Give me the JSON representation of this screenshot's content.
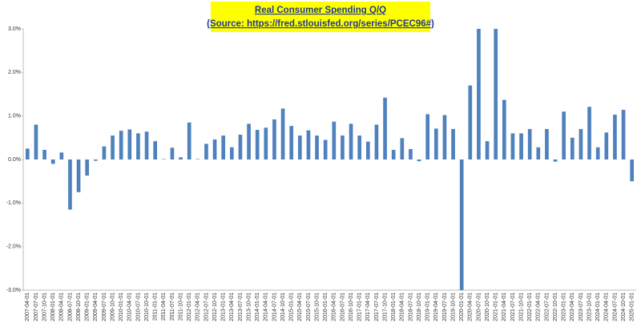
{
  "chart_data": {
    "type": "bar",
    "title": [
      "Real Consumer Spending Q/Q",
      "(Source: https://fred.stlouisfed.org/series/PCEC96#)"
    ],
    "categories": [
      "2007-04-01",
      "2007-07-01",
      "2007-10-01",
      "2008-01-01",
      "2008-04-01",
      "2008-07-01",
      "2008-10-01",
      "2009-01-01",
      "2009-04-01",
      "2009-07-01",
      "2009-10-01",
      "2010-01-01",
      "2010-04-01",
      "2010-07-01",
      "2010-10-01",
      "2011-01-01",
      "2011-04-01",
      "2011-07-01",
      "2011-10-01",
      "2012-01-01",
      "2012-04-01",
      "2012-07-01",
      "2012-10-01",
      "2013-01-01",
      "2013-04-01",
      "2013-07-01",
      "2013-10-01",
      "2014-01-01",
      "2014-04-01",
      "2014-07-01",
      "2014-10-01",
      "2015-01-01",
      "2015-04-01",
      "2015-07-01",
      "2015-10-01",
      "2016-01-01",
      "2016-04-01",
      "2016-07-01",
      "2016-10-01",
      "2017-01-01",
      "2017-04-01",
      "2017-07-01",
      "2017-10-01",
      "2018-01-01",
      "2018-04-01",
      "2018-07-01",
      "2018-10-01",
      "2019-01-01",
      "2019-04-01",
      "2019-07-01",
      "2019-10-01",
      "2020-01-01",
      "2020-04-01",
      "2020-07-01",
      "2020-10-01",
      "2021-01-01",
      "2021-04-01",
      "2021-07-01",
      "2021-10-01",
      "2022-01-01",
      "2022-04-01",
      "2022-07-01",
      "2022-10-01",
      "2023-01-01",
      "2023-04-01",
      "2023-07-01",
      "2023-10-01",
      "2024-01-01",
      "2024-04-01",
      "2024-07-01",
      "2024-10-01",
      "2025-01-01"
    ],
    "values": [
      0.25,
      0.8,
      0.22,
      -0.1,
      0.16,
      -1.15,
      -0.75,
      -0.37,
      -0.03,
      0.3,
      0.55,
      0.66,
      0.69,
      0.6,
      0.64,
      0.42,
      0.01,
      0.27,
      0.05,
      0.85,
      0.01,
      0.36,
      0.46,
      0.55,
      0.28,
      0.57,
      0.82,
      0.68,
      0.73,
      0.92,
      1.17,
      0.77,
      0.55,
      0.67,
      0.55,
      0.45,
      0.87,
      0.55,
      0.82,
      0.55,
      0.41,
      0.8,
      1.42,
      0.22,
      0.49,
      0.24,
      -0.04,
      1.04,
      0.71,
      1.02,
      0.7,
      -3,
      1.7,
      3,
      0.42,
      3,
      1.37,
      0.6,
      0.6,
      0.7,
      0.28,
      0.7,
      -0.05,
      1.1,
      0.5,
      0.7,
      1.21,
      0.28,
      0.62,
      1.03,
      1.14,
      -0.5
    ],
    "color": "#4f81bd",
    "ylim": [
      -3,
      3
    ],
    "yticks": [
      {
        "value": -3,
        "label": "-3.0%"
      },
      {
        "value": -2,
        "label": "-2.0%"
      },
      {
        "value": -1,
        "label": "-1.0%"
      },
      {
        "value": 0,
        "label": "0.0%"
      },
      {
        "value": 1,
        "label": "1.0%"
      },
      {
        "value": 2,
        "label": "2.0%"
      },
      {
        "value": 3,
        "label": "3.0%"
      }
    ],
    "grid": false
  }
}
